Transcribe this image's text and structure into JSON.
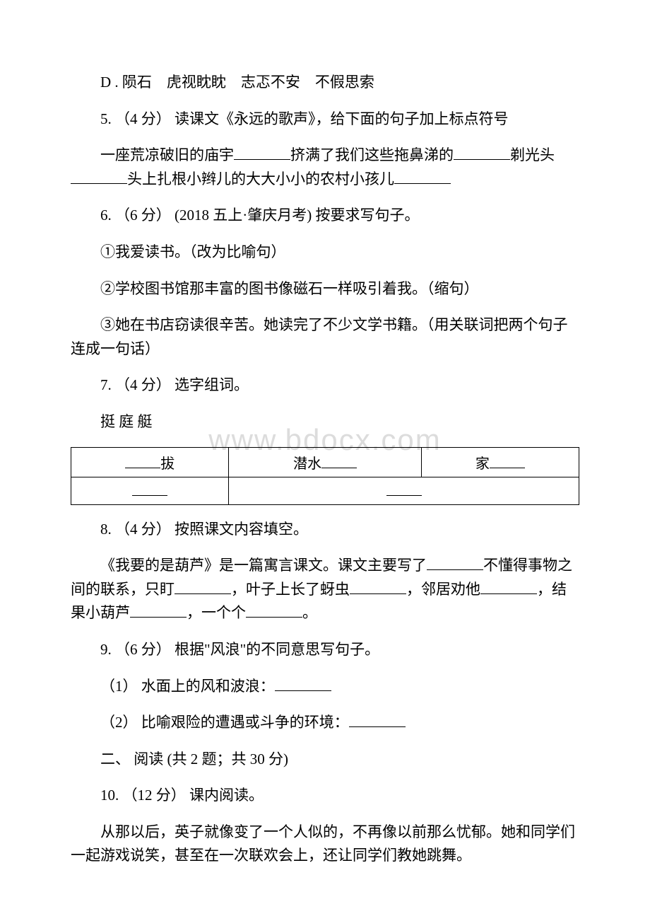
{
  "watermark": "www.bdocx.com",
  "q4_option_d": "D . 陨石　虎视眈眈　志忑不安　不假思索",
  "q5": {
    "prompt": "5. （4 分） 读课文《永远的歌声》，给下面的句子加上标点符号",
    "text_parts": [
      "一座荒凉破旧的庙宇",
      "挤满了我们这些拖鼻涕的",
      "剃光头",
      "头上扎根小辫儿的大大小小的农村小孩儿"
    ]
  },
  "q6": {
    "prompt": "6. （6 分） (2018 五上·肇庆月考) 按要求写句子。",
    "item1": "①我爱读书。（改为比喻句）",
    "item2": "②学校图书馆那丰富的图书像磁石一样吸引着我。（缩句）",
    "item3": "③她在书店窃读很辛苦。她读完了不少文学书籍。（用关联词把两个句子连成一句话）"
  },
  "q7": {
    "prompt": "7. （4 分） 选字组词。",
    "chars": "挺 庭 艇",
    "table": {
      "row1": [
        "拔",
        "潜水",
        "家"
      ],
      "row2_cells": 2
    }
  },
  "q8": {
    "prompt": "8. （4 分） 按照课文内容填空。",
    "text_parts": [
      "《我要的是葫芦》是一篇寓言课文。课文主要写了",
      "不懂得事物之间的联系，只盯",
      "，叶子上长了蚜虫",
      "，邻居劝他",
      "，结果小葫芦",
      "，一个个",
      "。"
    ]
  },
  "q9": {
    "prompt": "9. （6 分） 根据\"风浪\"的不同意思写句子。",
    "item1": "（1） 水面上的风和波浪：",
    "item2": "（2） 比喻艰险的遭遇或斗争的环境："
  },
  "section2": "二、 阅读 (共 2 题；共 30 分)",
  "q10": {
    "prompt": "10. （12 分） 课内阅读。",
    "passage": "从那以后，英子就像变了一个人似的，不再像以前那么忧郁。她和同学们一起游戏说笑，甚至在一次联欢会上，还让同学们教她跳舞。"
  }
}
